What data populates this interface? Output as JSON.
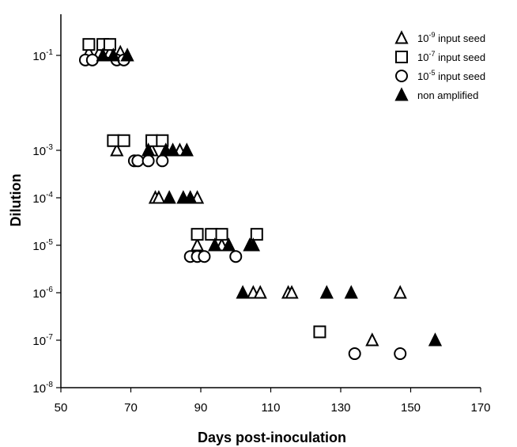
{
  "chart_data": {
    "type": "scatter",
    "xlabel": "Days post-inoculation",
    "ylabel": "Dilution",
    "xlim": [
      50,
      170
    ],
    "x_ticks": [
      50,
      70,
      90,
      110,
      130,
      150,
      170
    ],
    "y_ticks": [
      {
        "base": "10",
        "exp": "-1",
        "value": 0.1
      },
      {
        "base": "10",
        "exp": "-3",
        "value": 0.001
      },
      {
        "base": "10",
        "exp": "-4",
        "value": 0.0001
      },
      {
        "base": "10",
        "exp": "-5",
        "value": 1e-05
      },
      {
        "base": "10",
        "exp": "-6",
        "value": 1e-06
      },
      {
        "base": "10",
        "exp": "-7",
        "value": 1e-07
      },
      {
        "base": "10",
        "exp": "-8",
        "value": 1e-08
      }
    ],
    "legend_position": "top-right",
    "series": [
      {
        "key": "s9",
        "marker": "triangle-open",
        "label_prefix": "10",
        "label_exp": "-9",
        "label_suffix": " input seed",
        "points": [
          [
            58,
            0.115
          ],
          [
            61,
            0.115
          ],
          [
            64,
            0.115
          ],
          [
            66,
            0.001
          ],
          [
            67,
            0.115
          ],
          [
            76,
            0.001
          ],
          [
            77,
            0.0001
          ],
          [
            78,
            0.0001
          ],
          [
            84,
            0.001
          ],
          [
            89,
            0.0001
          ],
          [
            89,
            1e-05
          ],
          [
            96,
            1e-05
          ],
          [
            105,
            1e-06
          ],
          [
            107,
            1e-06
          ],
          [
            115,
            1e-06
          ],
          [
            116,
            1e-06
          ],
          [
            139,
            1e-07
          ],
          [
            147,
            1e-06
          ]
        ]
      },
      {
        "key": "s7",
        "marker": "square-open",
        "label_prefix": "10",
        "label_exp": "-7",
        "label_suffix": " input seed",
        "points": [
          [
            58,
            0.17
          ],
          [
            62,
            0.17
          ],
          [
            64,
            0.17
          ],
          [
            65,
            0.0016
          ],
          [
            68,
            0.0016
          ],
          [
            76,
            0.0016
          ],
          [
            79,
            0.0016
          ],
          [
            89,
            1.7e-05
          ],
          [
            93,
            1.7e-05
          ],
          [
            96,
            1.7e-05
          ],
          [
            106,
            1.7e-05
          ],
          [
            124,
            1.5e-07
          ]
        ]
      },
      {
        "key": "s5",
        "marker": "circle-open",
        "label_prefix": "10",
        "label_exp": "-5",
        "label_suffix": " input seed",
        "points": [
          [
            57,
            0.08
          ],
          [
            59,
            0.08
          ],
          [
            66,
            0.08
          ],
          [
            68,
            0.08
          ],
          [
            71,
            0.0006
          ],
          [
            72,
            0.0006
          ],
          [
            75,
            0.0006
          ],
          [
            79,
            0.0006
          ],
          [
            87,
            5.8e-06
          ],
          [
            89,
            5.8e-06
          ],
          [
            91,
            5.8e-06
          ],
          [
            100,
            5.8e-06
          ],
          [
            134,
            5.2e-08
          ],
          [
            147,
            5.2e-08
          ]
        ]
      },
      {
        "key": "na",
        "marker": "triangle-filled",
        "label_prefix": "non amplified",
        "label_exp": "",
        "label_suffix": "",
        "points": [
          [
            62,
            0.1
          ],
          [
            65,
            0.1
          ],
          [
            69,
            0.1
          ],
          [
            75,
            0.001
          ],
          [
            80,
            0.001
          ],
          [
            82,
            0.001
          ],
          [
            86,
            0.001
          ],
          [
            81,
            0.0001
          ],
          [
            85,
            0.0001
          ],
          [
            87,
            0.0001
          ],
          [
            94,
            1e-05
          ],
          [
            98,
            1e-05
          ],
          [
            104,
            1e-05
          ],
          [
            105,
            1e-05
          ],
          [
            102,
            1e-06
          ],
          [
            126,
            1e-06
          ],
          [
            133,
            1e-06
          ],
          [
            157,
            1e-07
          ]
        ]
      }
    ]
  }
}
